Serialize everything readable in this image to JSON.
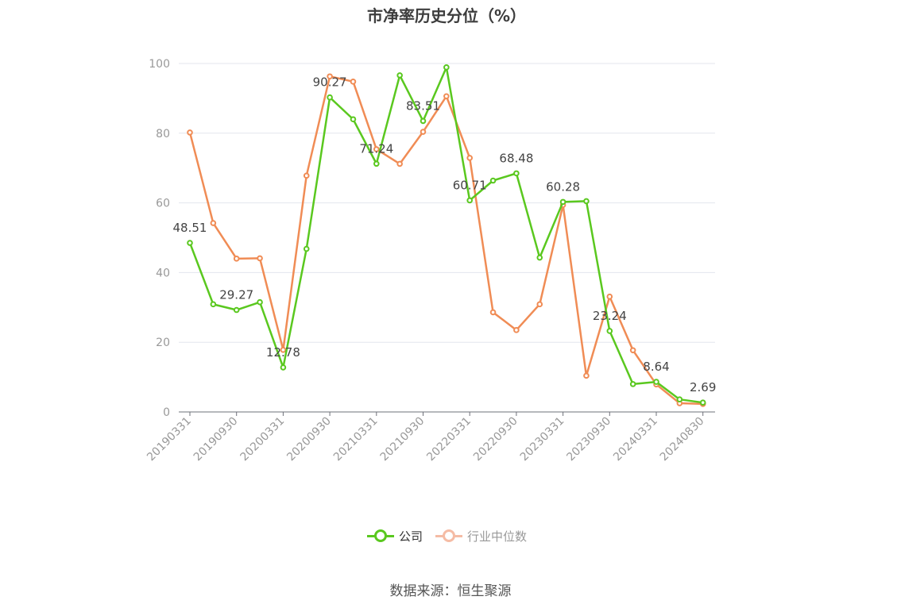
{
  "chart_data": {
    "type": "line",
    "title": "市净率历史分位（%）",
    "ylim": [
      0,
      100
    ],
    "yticks": [
      "0",
      "20",
      "40",
      "60",
      "80",
      "100"
    ],
    "x": [
      "20190331",
      "20190630",
      "20190930",
      "20191231",
      "20200331",
      "20200630",
      "20200930",
      "20201231",
      "20210331",
      "20210630",
      "20210930",
      "20211231",
      "20220331",
      "20220630",
      "20220930",
      "20221231",
      "20230331",
      "20230630",
      "20230930",
      "20231231",
      "20240331",
      "20240630",
      "20240830"
    ],
    "xtick_labels": [
      "20190331",
      "20190930",
      "20200331",
      "20200930",
      "20210331",
      "20210930",
      "20220331",
      "20220930",
      "20230331",
      "20230930",
      "20240331",
      "20240830"
    ],
    "series": [
      {
        "name": "公司",
        "color": "#5ac81f",
        "values": [
          48.51,
          30.9,
          29.27,
          31.5,
          12.78,
          46.8,
          90.27,
          84.0,
          71.24,
          96.6,
          83.51,
          98.9,
          60.71,
          66.4,
          68.48,
          44.3,
          60.28,
          60.5,
          23.24,
          8.0,
          8.64,
          3.6,
          2.69
        ],
        "labels": [
          "48.51",
          "",
          "29.27",
          "",
          "12.78",
          "",
          "90.27",
          "",
          "71.24",
          "",
          "83.51",
          "",
          "60.71",
          "",
          "68.48",
          "",
          "60.28",
          "",
          "23.24",
          "",
          "8.64",
          "",
          "2.69"
        ]
      },
      {
        "name": "行业中位数",
        "color": "#f08c55",
        "values": [
          80.2,
          54.2,
          44.0,
          44.1,
          17.8,
          67.8,
          96.3,
          94.8,
          75.4,
          71.2,
          80.4,
          90.6,
          72.9,
          28.6,
          23.5,
          30.9,
          59.4,
          10.4,
          33.1,
          17.7,
          7.9,
          2.5,
          2.3
        ]
      }
    ]
  },
  "legend": {
    "company": "公司",
    "industry": "行业中位数",
    "company_color": "#5ac81f",
    "industry_color": "#f5bca5"
  },
  "source": "数据来源：恒生聚源"
}
